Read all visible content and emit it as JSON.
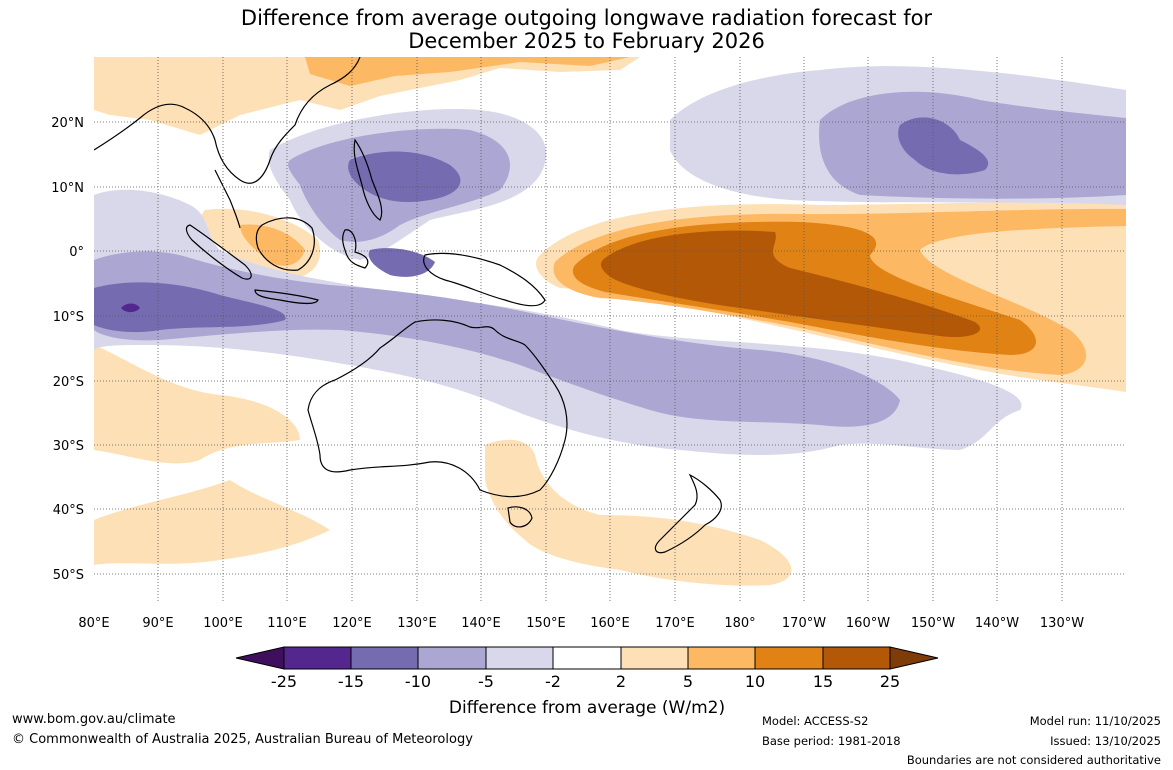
{
  "title_line1": "Difference from average outgoing longwave radiation forecast for",
  "title_line2": "December 2025 to February 2026",
  "lat_labels": [
    "20°N",
    "10°N",
    "0°",
    "10°S",
    "20°S",
    "30°S",
    "40°S",
    "50°S"
  ],
  "lon_labels": [
    "80°E",
    "90°E",
    "100°E",
    "110°E",
    "120°E",
    "130°E",
    "140°E",
    "150°E",
    "160°E",
    "170°E",
    "180°",
    "170°W",
    "160°W",
    "150°W",
    "140°W",
    "130°W"
  ],
  "colorbar": {
    "ticks": [
      "-25",
      "-15",
      "-10",
      "-5",
      "-2",
      "2",
      "5",
      "10",
      "15",
      "25"
    ],
    "colors": [
      "#3f0e5c",
      "#54278f",
      "#756bb1",
      "#aca6d2",
      "#d9d8ea",
      "#ffffff",
      "#fee0b6",
      "#fdb863",
      "#e08214",
      "#b35806",
      "#7f3b08"
    ],
    "label": "Difference from average (W/m2)"
  },
  "footer": {
    "url": "www.bom.gov.au/climate",
    "copyright": "© Commonwealth of Australia 2025, Australian Bureau of Meteorology",
    "model": "Model: ACCESS-S2",
    "base_period": "Base period: 1981-2018",
    "model_run": "Model run: 11/10/2025",
    "issued": "Issued: 13/10/2025",
    "disclaimer": "Boundaries are not considered authoritative"
  }
}
